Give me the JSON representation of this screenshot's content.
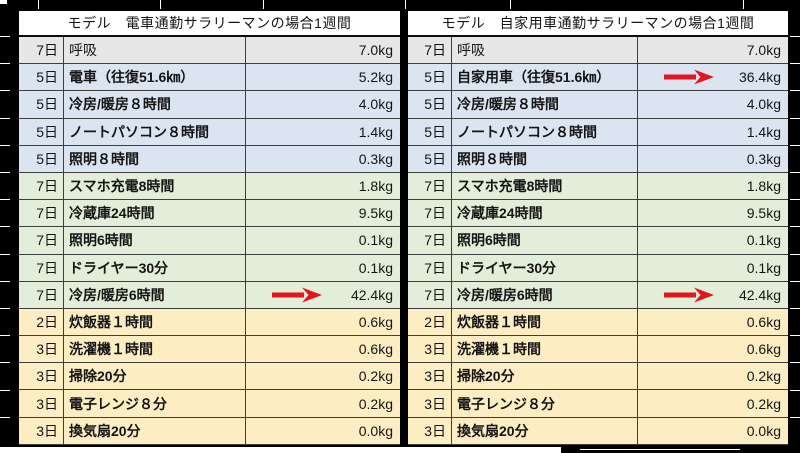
{
  "colors": {
    "margin_black": "#000000",
    "header_bg": "#ffffff",
    "band_gray": "#e8e7e7",
    "band_blue": "#dbe5f1",
    "band_green": "#e3eeda",
    "band_yellow": "#fdedc3",
    "grid_line": "#3e3e3e",
    "arrow_red": "#e2171d",
    "text": "#141414"
  },
  "tables": [
    {
      "name": "train-commute-table",
      "title": "モデル　電車通勤サラリーマンの場合1週間",
      "rows": [
        {
          "days": "7日",
          "item": "呼吸",
          "value": "7.0kg",
          "band": "gray",
          "bold": false,
          "arrow": false
        },
        {
          "days": "5日",
          "item": "電車（往復51.6㎞）",
          "value": "5.2kg",
          "band": "blue",
          "bold": true,
          "arrow": false
        },
        {
          "days": "5日",
          "item": "冷房/暖房８時間",
          "value": "4.0kg",
          "band": "blue",
          "bold": true,
          "arrow": false
        },
        {
          "days": "5日",
          "item": "ノートパソコン８時間",
          "value": "1.4kg",
          "band": "blue",
          "bold": true,
          "arrow": false
        },
        {
          "days": "5日",
          "item": "照明８時間",
          "value": "0.3kg",
          "band": "blue",
          "bold": true,
          "arrow": false
        },
        {
          "days": "7日",
          "item": "スマホ充電8時間",
          "value": "1.8kg",
          "band": "green",
          "bold": true,
          "arrow": false
        },
        {
          "days": "7日",
          "item": "冷蔵庫24時間",
          "value": "9.5kg",
          "band": "green",
          "bold": true,
          "arrow": false
        },
        {
          "days": "7日",
          "item": "照明6時間",
          "value": "0.1kg",
          "band": "green",
          "bold": true,
          "arrow": false
        },
        {
          "days": "7日",
          "item": "ドライヤー30分",
          "value": "0.1kg",
          "band": "green",
          "bold": true,
          "arrow": false
        },
        {
          "days": "7日",
          "item": "冷房/暖房6時間",
          "value": "42.4kg",
          "band": "green",
          "bold": true,
          "arrow": true
        },
        {
          "days": "2日",
          "item": "炊飯器１時間",
          "value": "0.6kg",
          "band": "yellow",
          "bold": true,
          "arrow": false
        },
        {
          "days": "3日",
          "item": "洗濯機１時間",
          "value": "0.6kg",
          "band": "yellow",
          "bold": true,
          "arrow": false
        },
        {
          "days": "3日",
          "item": "掃除20分",
          "value": "0.2kg",
          "band": "yellow",
          "bold": true,
          "arrow": false
        },
        {
          "days": "3日",
          "item": "電子レンジ８分",
          "value": "0.2kg",
          "band": "yellow",
          "bold": true,
          "arrow": false
        },
        {
          "days": "3日",
          "item": "換気扇20分",
          "value": "0.0kg",
          "band": "yellow",
          "bold": true,
          "arrow": false
        }
      ]
    },
    {
      "name": "car-commute-table",
      "title": "モデル　自家用車通勤サラリーマンの場合1週間",
      "rows": [
        {
          "days": "7日",
          "item": "呼吸",
          "value": "7.0kg",
          "band": "gray",
          "bold": false,
          "arrow": false
        },
        {
          "days": "5日",
          "item": "自家用車（往復51.6㎞）",
          "value": "36.4kg",
          "band": "blue",
          "bold": true,
          "arrow": true
        },
        {
          "days": "5日",
          "item": "冷房/暖房８時間",
          "value": "4.0kg",
          "band": "blue",
          "bold": true,
          "arrow": false
        },
        {
          "days": "5日",
          "item": "ノートパソコン８時間",
          "value": "1.4kg",
          "band": "blue",
          "bold": true,
          "arrow": false
        },
        {
          "days": "5日",
          "item": "照明８時間",
          "value": "0.3kg",
          "band": "blue",
          "bold": true,
          "arrow": false
        },
        {
          "days": "7日",
          "item": "スマホ充電8時間",
          "value": "1.8kg",
          "band": "green",
          "bold": true,
          "arrow": false
        },
        {
          "days": "7日",
          "item": "冷蔵庫24時間",
          "value": "9.5kg",
          "band": "green",
          "bold": true,
          "arrow": false
        },
        {
          "days": "7日",
          "item": "照明6時間",
          "value": "0.1kg",
          "band": "green",
          "bold": true,
          "arrow": false
        },
        {
          "days": "7日",
          "item": "ドライヤー30分",
          "value": "0.1kg",
          "band": "green",
          "bold": true,
          "arrow": false
        },
        {
          "days": "7日",
          "item": "冷房/暖房6時間",
          "value": "42.4kg",
          "band": "green",
          "bold": true,
          "arrow": true
        },
        {
          "days": "2日",
          "item": "炊飯器１時間",
          "value": "0.6kg",
          "band": "yellow",
          "bold": true,
          "arrow": false
        },
        {
          "days": "3日",
          "item": "洗濯機１時間",
          "value": "0.6kg",
          "band": "yellow",
          "bold": true,
          "arrow": false
        },
        {
          "days": "3日",
          "item": "掃除20分",
          "value": "0.2kg",
          "band": "yellow",
          "bold": true,
          "arrow": false
        },
        {
          "days": "3日",
          "item": "電子レンジ８分",
          "value": "0.2kg",
          "band": "yellow",
          "bold": true,
          "arrow": false
        },
        {
          "days": "3日",
          "item": "換気扇20分",
          "value": "0.0kg",
          "band": "yellow",
          "bold": true,
          "arrow": false
        }
      ]
    }
  ]
}
